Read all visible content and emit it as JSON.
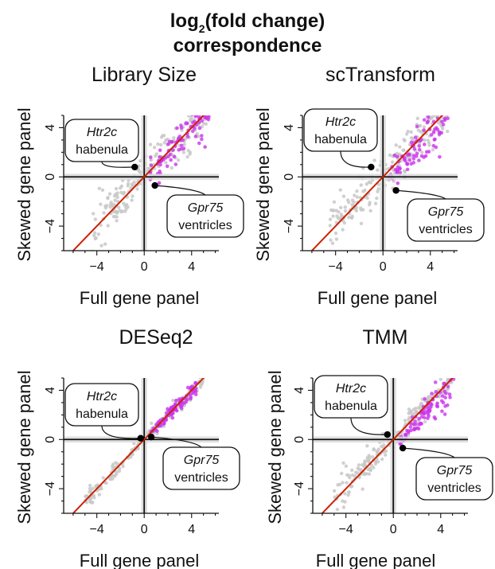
{
  "figure": {
    "title_prefix": "log",
    "title_subscript": "2",
    "title_suffix": "(fold change)",
    "title_line2": "correspondence"
  },
  "colors": {
    "background_points": "#c8c8c8",
    "highlight_points": "#cc33ee",
    "identity_line": "#cc2200",
    "zero_lines": "#111111",
    "gene_points": "#000000"
  },
  "chart_data": [
    {
      "type": "scatter",
      "title": "Library Size",
      "xlabel": "Full gene panel",
      "ylabel": "Skewed gene panel",
      "xticks": [
        -4,
        0,
        4
      ],
      "yticks": [
        -4,
        0,
        4
      ],
      "xlim": [
        -6.8,
        6.3
      ],
      "ylim": [
        -6.0,
        5.0
      ],
      "identity_line": true,
      "zero_lines": true,
      "cloud": {
        "x_range": [
          -4.5,
          5.5
        ],
        "offset": 0.2,
        "spread": 1.1
      },
      "highlight": {
        "x_range": [
          0.5,
          5.5
        ],
        "offset": -0.1,
        "spread": 1.0
      },
      "genes": [
        {
          "name": "Htr2c",
          "region": "habenula",
          "x": -0.8,
          "y": 0.8,
          "label_side": "upper-left"
        },
        {
          "name": "Gpr75",
          "region": "ventricles",
          "x": 0.9,
          "y": -0.7,
          "label_side": "lower-right"
        }
      ]
    },
    {
      "type": "scatter",
      "title": "scTransform",
      "xlabel": "Full gene panel",
      "ylabel": "Skewed gene panel",
      "xticks": [
        -4,
        0,
        4
      ],
      "yticks": [
        -4,
        0,
        4
      ],
      "xlim": [
        -6.8,
        6.3
      ],
      "ylim": [
        -6.0,
        5.0
      ],
      "identity_line": true,
      "zero_lines": true,
      "cloud": {
        "x_range": [
          -4.5,
          5.5
        ],
        "offset": 0.2,
        "spread": 1.1
      },
      "highlight": {
        "x_range": [
          0.5,
          5.5
        ],
        "offset": -0.5,
        "spread": 1.0
      },
      "genes": [
        {
          "name": "Htr2c",
          "region": "habenula",
          "x": -1.0,
          "y": 0.8,
          "label_side": "upper-left"
        },
        {
          "name": "Gpr75",
          "region": "ventricles",
          "x": 1.1,
          "y": -1.1,
          "label_side": "lower-right"
        }
      ]
    },
    {
      "type": "scatter",
      "title": "DESeq2",
      "xlabel": "Full gene panel",
      "ylabel": "Skewed gene panel",
      "xticks": [
        -4,
        0,
        4
      ],
      "yticks": [
        -4,
        0,
        4
      ],
      "xlim": [
        -6.8,
        6.3
      ],
      "ylim": [
        -6.0,
        5.0
      ],
      "identity_line": true,
      "zero_lines": true,
      "cloud": {
        "x_range": [
          -5.0,
          5.0
        ],
        "offset": 0.0,
        "spread": 0.35
      },
      "highlight": {
        "x_range": [
          0.5,
          4.5
        ],
        "offset": -0.05,
        "spread": 0.35
      },
      "genes": [
        {
          "name": "Htr2c",
          "region": "habenula",
          "x": -0.3,
          "y": 0.1,
          "label_side": "upper-left"
        },
        {
          "name": "Gpr75",
          "region": "ventricles",
          "x": 0.6,
          "y": 0.2,
          "label_side": "lower-right"
        }
      ]
    },
    {
      "type": "scatter",
      "title": "TMM",
      "xlabel": "Full gene panel",
      "ylabel": "Skewed gene panel",
      "xticks": [
        -4,
        0,
        4
      ],
      "yticks": [
        -4,
        0,
        4
      ],
      "xlim": [
        -6.8,
        6.3
      ],
      "ylim": [
        -6.0,
        5.0
      ],
      "identity_line": true,
      "zero_lines": true,
      "cloud": {
        "x_range": [
          -5.0,
          5.5
        ],
        "offset": 0.1,
        "spread": 0.7
      },
      "highlight": {
        "x_range": [
          0.5,
          5.2
        ],
        "offset": -0.5,
        "spread": 0.7
      },
      "genes": [
        {
          "name": "Htr2c",
          "region": "habenula",
          "x": -0.5,
          "y": 0.4,
          "label_side": "upper-left"
        },
        {
          "name": "Gpr75",
          "region": "ventricles",
          "x": 0.8,
          "y": -0.7,
          "label_side": "lower-right"
        }
      ]
    }
  ]
}
